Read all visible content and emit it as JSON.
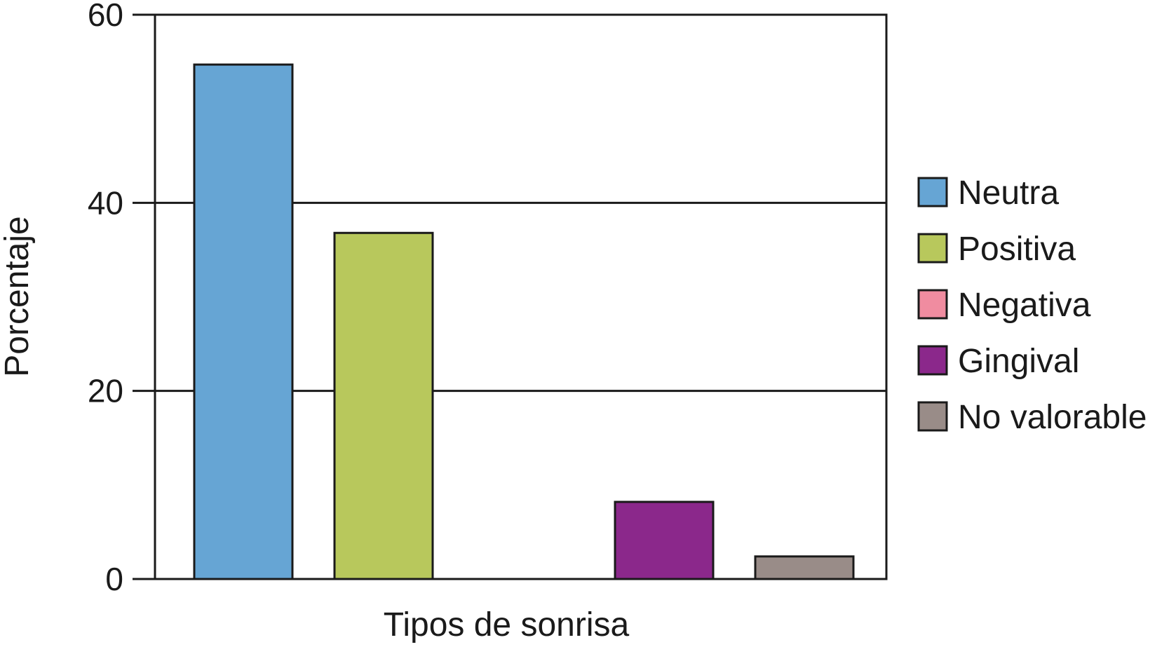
{
  "chart_data": {
    "type": "bar",
    "title": "",
    "xlabel": "Tipos de sonrisa",
    "ylabel": "Porcentaje",
    "ylim": [
      0,
      60
    ],
    "yticks": [
      "0",
      "20",
      "40",
      "60"
    ],
    "grid": "horizontal",
    "legend_position": "right",
    "categories": [
      "Neutra",
      "Positiva",
      "Negativa",
      "Gingival",
      "No valorable"
    ],
    "values": [
      54.7,
      36.8,
      0,
      8.2,
      2.4
    ],
    "colors": [
      "#66a5d4",
      "#b8c85c",
      "#f08ca0",
      "#8b288b",
      "#998c88"
    ]
  }
}
